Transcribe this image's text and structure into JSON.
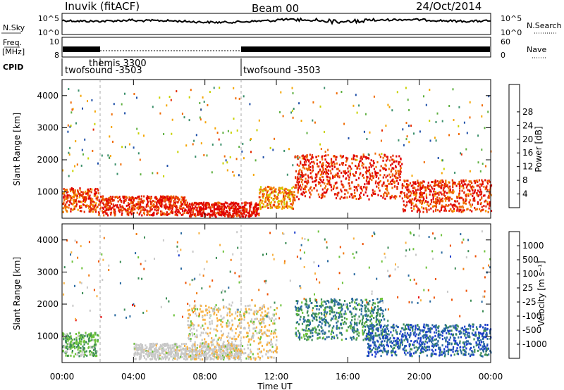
{
  "header": {
    "station": "Inuvik (fitACF)",
    "beam": "Beam 00",
    "date": "24/Oct/2014"
  },
  "strip": {
    "nsky_label": "N.Sky",
    "nsearch_label": "N.Search",
    "freq_label_1": "Freq.",
    "freq_label_2": "[MHz]",
    "nave_label": "Nave",
    "cpid_label": "CPID",
    "nsky_left_ticks": [
      "10^5",
      "10^0"
    ],
    "nsky_right_ticks": [
      "10^5",
      "10^0"
    ],
    "freq_ticks": [
      "10",
      "8"
    ],
    "nave_ticks": [
      "60",
      "0"
    ],
    "cpid_segments": [
      {
        "label": "twofsound -3503",
        "start_h": 0.0,
        "end_h": 2.0,
        "row": "low"
      },
      {
        "label": "themis 3300",
        "start_h": 2.0,
        "end_h": 10.0,
        "row": "high"
      },
      {
        "label": "twofsound -3503",
        "start_h": 10.0,
        "end_h": 24.0,
        "row": "low"
      }
    ]
  },
  "panels": {
    "power": {
      "ylabel": "Slant Range [km]",
      "yticks": [
        "1000",
        "2000",
        "3000",
        "4000"
      ],
      "colorbar_title": "Power [dB]",
      "colorbar_ticks": [
        "4",
        "8",
        "12",
        "16",
        "20",
        "24",
        "28"
      ],
      "colors": [
        "#0000ff",
        "#1f4fa8",
        "#3a8f6a",
        "#5fb041",
        "#c8d200",
        "#f5a500",
        "#f06a00",
        "#e42a00",
        "#e00000"
      ]
    },
    "velocity": {
      "ylabel": "Slant Range [km]",
      "yticks": [
        "1000",
        "2000",
        "3000",
        "4000"
      ],
      "colorbar_title": "Velocity [m s⁻¹]",
      "colorbar_ticks": [
        "1000",
        "500",
        "100",
        "25",
        "-25",
        "-100",
        "-500",
        "-1000"
      ],
      "colors": [
        "#1a3ccc",
        "#2a6aa0",
        "#3b8c55",
        "#6cc23a",
        "#c8c8c8",
        "#f7b040",
        "#f07a10",
        "#ee5000",
        "#e81010"
      ],
      "ground_scatter_color": "#c0c0c0"
    }
  },
  "xaxis": {
    "label": "Time UT",
    "ticks": [
      "00:00",
      "04:00",
      "08:00",
      "12:00",
      "16:00",
      "20:00",
      "00:00"
    ]
  },
  "chart_data": [
    {
      "type": "heatmap",
      "title": "Power",
      "x_range_hours": [
        0,
        24
      ],
      "y_range_km": [
        180,
        4500
      ],
      "xlabel": "Time UT",
      "ylabel": "Slant Range [km]",
      "colorbar_label": "Power [dB]",
      "colorbar_range": [
        0,
        30
      ],
      "bands": [
        {
          "t0": 0.0,
          "t1": 2.0,
          "r0": 400,
          "r1": 1150,
          "value": 24
        },
        {
          "t0": 2.0,
          "t1": 7.0,
          "r0": 300,
          "r1": 900,
          "value": 26
        },
        {
          "t0": 7.0,
          "t1": 11.0,
          "r0": 250,
          "r1": 700,
          "value": 28
        },
        {
          "t0": 11.0,
          "t1": 13.0,
          "r0": 500,
          "r1": 1200,
          "value": 20
        },
        {
          "t0": 13.0,
          "t1": 19.0,
          "r0": 800,
          "r1": 2200,
          "value": 26
        },
        {
          "t0": 19.0,
          "t1": 24.0,
          "r0": 400,
          "r1": 1400,
          "value": 25
        }
      ]
    },
    {
      "type": "heatmap",
      "title": "Velocity",
      "x_range_hours": [
        0,
        24
      ],
      "y_range_km": [
        180,
        4500
      ],
      "xlabel": "Time UT",
      "ylabel": "Slant Range [km]",
      "colorbar_label": "Velocity [m s-1]",
      "colorbar_range": [
        -1000,
        1000
      ],
      "bands": [
        {
          "t0": 0.0,
          "t1": 2.0,
          "r0": 400,
          "r1": 1150,
          "value": -300
        },
        {
          "t0": 4.0,
          "t1": 10.0,
          "r0": 300,
          "r1": 800,
          "value": 0
        },
        {
          "t0": 7.0,
          "t1": 12.0,
          "r0": 300,
          "r1": 2000,
          "value": 80
        },
        {
          "t0": 13.0,
          "t1": 18.0,
          "r0": 900,
          "r1": 2200,
          "value": -500
        },
        {
          "t0": 17.0,
          "t1": 24.0,
          "r0": 400,
          "r1": 1400,
          "value": -700
        }
      ]
    }
  ]
}
